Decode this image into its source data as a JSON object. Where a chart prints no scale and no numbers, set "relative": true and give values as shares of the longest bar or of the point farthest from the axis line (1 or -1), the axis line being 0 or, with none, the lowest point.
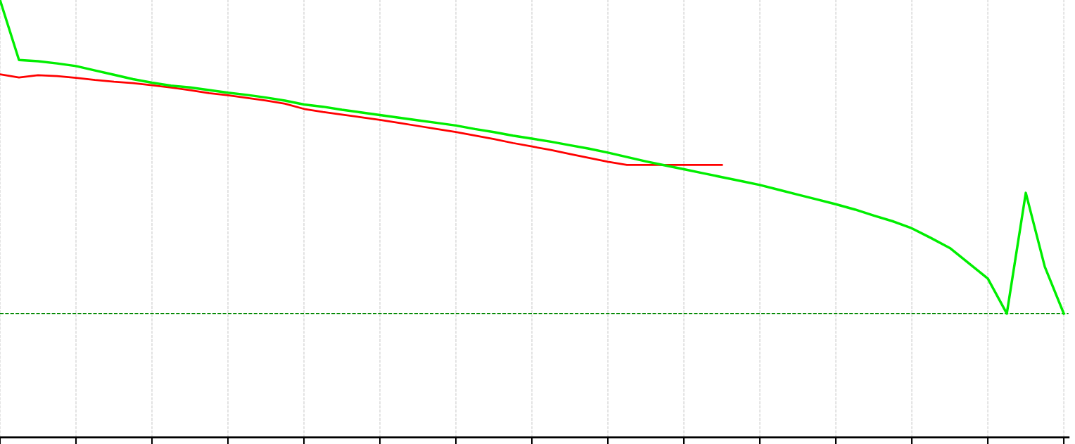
{
  "chart_data": {
    "type": "line",
    "relative": true,
    "grid": "x",
    "line_style": "solid",
    "categories": [
      null,
      null,
      null,
      null,
      null,
      null,
      null,
      null,
      null,
      null,
      null,
      null,
      null,
      null,
      null,
      null,
      null,
      null,
      null,
      null,
      null,
      null,
      null,
      null,
      null,
      null,
      null,
      null,
      null,
      null,
      null,
      null,
      null,
      null,
      null,
      null,
      null,
      null,
      null,
      null,
      null,
      null,
      null,
      null,
      null,
      null,
      null,
      null,
      null,
      null,
      null,
      null,
      null,
      null,
      null,
      null,
      null
    ],
    "series": [
      {
        "color": "#ff0000",
        "values": [
          0.83,
          0.823,
          0.828,
          0.826,
          0.822,
          0.817,
          0.813,
          0.81,
          0.805,
          0.8,
          0.794,
          0.787,
          0.782,
          0.776,
          0.77,
          0.763,
          0.751,
          0.744,
          0.738,
          0.732,
          0.726,
          0.719,
          0.712,
          0.705,
          0.698,
          0.69,
          0.682,
          0.673,
          0.665,
          0.657,
          0.648,
          0.639,
          0.63,
          0.623,
          0.623,
          0.623,
          0.623,
          0.623,
          0.623,
          null,
          null,
          null,
          null,
          null,
          null,
          null,
          null,
          null,
          null,
          null,
          null,
          null,
          null,
          null,
          null,
          null,
          null
        ]
      },
      {
        "color": "#00ee00",
        "values": [
          1.0,
          0.863,
          0.86,
          0.855,
          0.849,
          0.839,
          0.829,
          0.819,
          0.811,
          0.804,
          0.8,
          0.794,
          0.788,
          0.783,
          0.777,
          0.77,
          0.761,
          0.756,
          0.749,
          0.743,
          0.737,
          0.731,
          0.725,
          0.719,
          0.713,
          0.705,
          0.698,
          0.69,
          0.683,
          0.676,
          0.668,
          0.66,
          0.651,
          0.641,
          0.631,
          0.622,
          0.613,
          0.604,
          0.595,
          0.586,
          0.577,
          0.566,
          0.555,
          0.544,
          0.533,
          0.521,
          0.507,
          0.494,
          0.478,
          0.456,
          0.433,
          0.398,
          0.363,
          0.283,
          0.559,
          0.39,
          0.283
        ]
      }
    ],
    "ref_lines": [
      {
        "axis": "y",
        "value": 0.283,
        "color": "#008800",
        "line_style": "dashed"
      }
    ]
  }
}
